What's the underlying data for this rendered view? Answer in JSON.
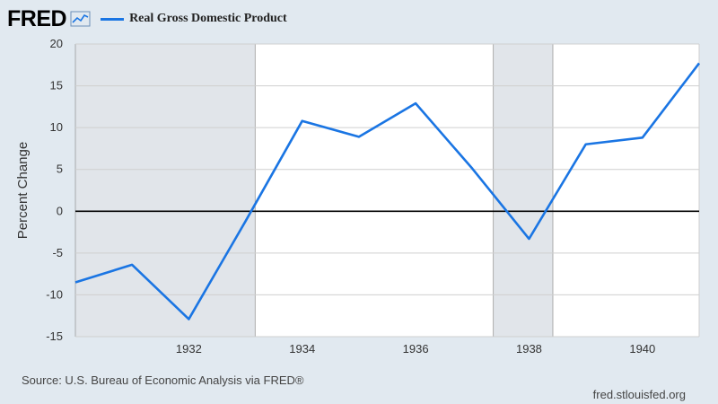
{
  "header": {
    "logo_text": "FRED",
    "logo_icon": "line-graph-icon",
    "legend_label": "Real Gross Domestic Product"
  },
  "footer": {
    "source": "Source: U.S. Bureau of Economic Analysis via FRED®",
    "site": "fred.stlouisfed.org"
  },
  "colors": {
    "series": "#1a75e3",
    "background": "#e1e9f0",
    "plot_background": "#ffffff",
    "recession_shade": "#e1e5ea",
    "grid": "#cfcfcf",
    "zero_line": "#000000"
  },
  "chart_data": {
    "type": "line",
    "title": "Real Gross Domestic Product",
    "xlabel": "",
    "ylabel": "Percent Change",
    "xlim": [
      1930,
      1941
    ],
    "ylim": [
      -15,
      20
    ],
    "x_ticks": [
      1932,
      1934,
      1936,
      1938,
      1940
    ],
    "y_ticks": [
      20,
      15,
      10,
      5,
      0,
      -5,
      -10,
      -15
    ],
    "grid": true,
    "series": [
      {
        "name": "Real Gross Domestic Product",
        "x": [
          1930,
          1931,
          1932,
          1933,
          1934,
          1935,
          1936,
          1937,
          1938,
          1939,
          1940,
          1941
        ],
        "values": [
          -8.5,
          -6.4,
          -12.9,
          -1.2,
          10.8,
          8.9,
          12.9,
          5.1,
          -3.3,
          8.0,
          8.8,
          17.7
        ]
      }
    ],
    "recessions": [
      [
        1930,
        1933.17
      ],
      [
        1937.37,
        1938.42
      ]
    ]
  }
}
